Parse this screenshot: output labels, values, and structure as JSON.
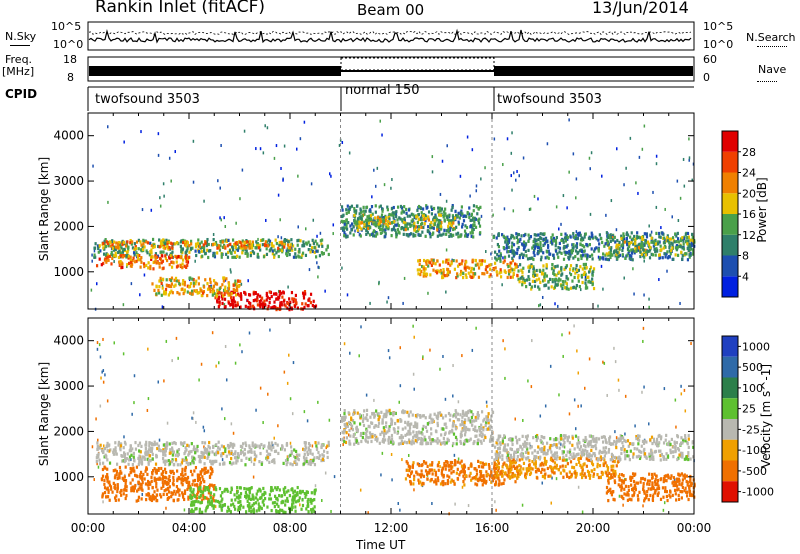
{
  "header": {
    "title": "Rankin Inlet (fitACF)",
    "beam": "Beam 00",
    "date": "13/Jun/2014"
  },
  "top_panels": {
    "nsky_label": "N.Sky",
    "nsky_ticks": [
      "10^5",
      "10^0"
    ],
    "nsearch_label": "N.Search",
    "freq_label_1": "Freq.",
    "freq_label_2": "[MHz]",
    "freq_ticks": [
      "18",
      "8"
    ],
    "nave_label": "Nave",
    "nave_ticks": [
      "60",
      "0"
    ],
    "cpid_label": "CPID",
    "cpid_segments": [
      {
        "label": "twofsound 3503",
        "start_h": 0,
        "end_h": 10
      },
      {
        "label": "normal 150",
        "start_h": 10,
        "end_h": 16
      },
      {
        "label": "twofsound 3503",
        "start_h": 16,
        "end_h": 24
      }
    ]
  },
  "colors": {
    "power_scale": [
      "#0020e0",
      "#1d4fb0",
      "#2f7f6a",
      "#4aa04a",
      "#e8c000",
      "#f08000",
      "#f04000",
      "#e00000"
    ],
    "velocity_scale": [
      "#2040c0",
      "#2f6aa8",
      "#2c7f4a",
      "#5ec030",
      "#b8b8b0",
      "#f0a000",
      "#f07000",
      "#e01000"
    ]
  },
  "chart_data": [
    {
      "type": "heatmap",
      "panel": "power",
      "ylabel": "Slant Range [km]",
      "yticks": [
        1000,
        2000,
        3000,
        4000
      ],
      "ylim": [
        180,
        4500
      ],
      "xlabel": "Time UT",
      "xticks": [
        "00:00",
        "04:00",
        "08:00",
        "12:00",
        "16:00",
        "20:00",
        "00:00"
      ],
      "xlim": [
        0,
        24
      ],
      "colorbar_label": "Power [dB]",
      "colorbar_ticks": [
        "4",
        "8",
        "12",
        "16",
        "20",
        "24",
        "28"
      ],
      "clim": [
        0,
        30
      ],
      "regions": [
        {
          "t0": 0.2,
          "t1": 9.5,
          "r0": 1350,
          "r1": 1750,
          "value": 12
        },
        {
          "t0": 0.5,
          "t1": 8.0,
          "r0": 1550,
          "r1": 1700,
          "value": 20
        },
        {
          "t0": 0.3,
          "t1": 4.0,
          "r0": 1100,
          "r1": 1400,
          "value": 22
        },
        {
          "t0": 5.0,
          "t1": 9.0,
          "r0": 200,
          "r1": 600,
          "value": 29
        },
        {
          "t0": 2.5,
          "t1": 6.0,
          "r0": 500,
          "r1": 900,
          "value": 18
        },
        {
          "t0": 10.0,
          "t1": 15.5,
          "r0": 1800,
          "r1": 2500,
          "value": 10
        },
        {
          "t0": 10.5,
          "t1": 14.5,
          "r0": 1950,
          "r1": 2300,
          "value": 15
        },
        {
          "t0": 13.0,
          "t1": 17.0,
          "r0": 900,
          "r1": 1300,
          "value": 19
        },
        {
          "t0": 16.0,
          "t1": 24.0,
          "r0": 1300,
          "r1": 1900,
          "value": 9
        },
        {
          "t0": 17.0,
          "t1": 20.0,
          "r0": 650,
          "r1": 1200,
          "value": 13
        },
        {
          "t0": 20.5,
          "t1": 24.0,
          "r0": 1400,
          "r1": 1800,
          "value": 14
        }
      ]
    },
    {
      "type": "heatmap",
      "panel": "velocity",
      "ylabel": "Slant Range [km]",
      "yticks": [
        1000,
        2000,
        3000,
        4000
      ],
      "ylim": [
        180,
        4500
      ],
      "xlabel": "Time UT",
      "xticks": [
        "00:00",
        "04:00",
        "08:00",
        "12:00",
        "16:00",
        "20:00",
        "00:00"
      ],
      "xlim": [
        0,
        24
      ],
      "colorbar_label": "Velocity [m s^-1]",
      "colorbar_ticks": [
        "1000",
        "500",
        "100",
        "25",
        "-25",
        "-100",
        "-500",
        "-1000"
      ],
      "regions": [
        {
          "t0": 0.3,
          "t1": 9.5,
          "r0": 1300,
          "r1": 1800,
          "value": 0
        },
        {
          "t0": 0.5,
          "t1": 5.0,
          "r0": 500,
          "r1": 1250,
          "value": -250
        },
        {
          "t0": 4.0,
          "t1": 9.0,
          "r0": 250,
          "r1": 800,
          "value": 60
        },
        {
          "t0": 10.0,
          "t1": 16.0,
          "r0": 1750,
          "r1": 2500,
          "value": 0
        },
        {
          "t0": 12.5,
          "t1": 17.0,
          "r0": 850,
          "r1": 1400,
          "value": -150
        },
        {
          "t0": 16.0,
          "t1": 21.0,
          "r0": 1000,
          "r1": 1450,
          "value": -90
        },
        {
          "t0": 16.0,
          "t1": 24.0,
          "r0": 1400,
          "r1": 1950,
          "value": 0
        },
        {
          "t0": 20.5,
          "t1": 24.0,
          "r0": 500,
          "r1": 1100,
          "value": -300
        }
      ]
    }
  ]
}
